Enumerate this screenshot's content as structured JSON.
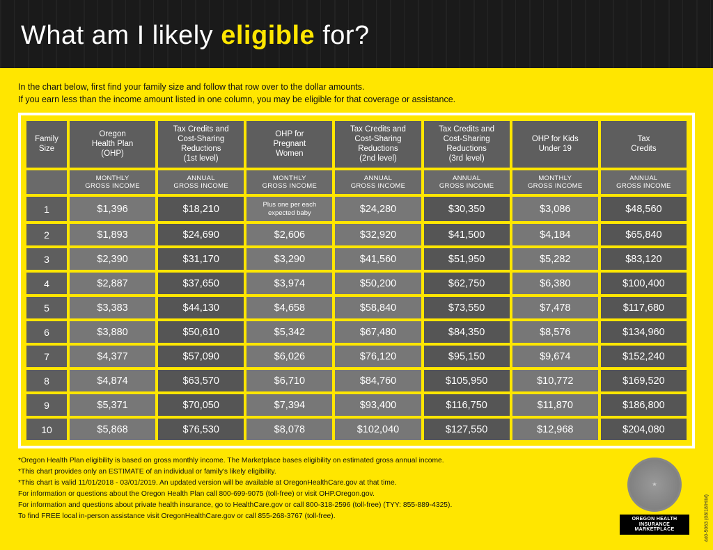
{
  "header": {
    "title_pre": "What am I likely ",
    "title_em": "eligible",
    "title_post": " for?"
  },
  "intro": {
    "line1": "In the chart below, first find your family size and follow that row over to the dollar amounts.",
    "line2": "If you earn less than the income amount listed in one column, you may be eligible for that coverage or assistance."
  },
  "table": {
    "columns": [
      {
        "label": "Family\nSize",
        "sub": ""
      },
      {
        "label": "Oregon\nHealth Plan\n(OHP)",
        "sub": "MONTHLY\nGROSS INCOME"
      },
      {
        "label": "Tax Credits and\nCost-Sharing\nReductions\n(1st level)",
        "sub": "ANNUAL\nGROSS INCOME"
      },
      {
        "label": "OHP for\nPregnant\nWomen",
        "sub": "MONTHLY\nGROSS INCOME"
      },
      {
        "label": "Tax Credits and\nCost-Sharing\nReductions\n(2nd level)",
        "sub": "ANNUAL\nGROSS INCOME"
      },
      {
        "label": "Tax Credits and\nCost-Sharing\nReductions\n(3rd level)",
        "sub": "ANNUAL\nGROSS INCOME"
      },
      {
        "label": "OHP for Kids\nUnder 19",
        "sub": "MONTHLY\nGROSS INCOME"
      },
      {
        "label": "Tax\nCredits",
        "sub": "ANNUAL\nGROSS INCOME"
      }
    ],
    "dark_cols": [
      2,
      5,
      7
    ],
    "rows": [
      [
        "1",
        "$1,396",
        "$18,210",
        "Plus one per each\nexpected baby",
        "$24,280",
        "$30,350",
        "$3,086",
        "$48,560"
      ],
      [
        "2",
        "$1,893",
        "$24,690",
        "$2,606",
        "$32,920",
        "$41,500",
        "$4,184",
        "$65,840"
      ],
      [
        "3",
        "$2,390",
        "$31,170",
        "$3,290",
        "$41,560",
        "$51,950",
        "$5,282",
        "$83,120"
      ],
      [
        "4",
        "$2,887",
        "$37,650",
        "$3,974",
        "$50,200",
        "$62,750",
        "$6,380",
        "$100,400"
      ],
      [
        "5",
        "$3,383",
        "$44,130",
        "$4,658",
        "$58,840",
        "$73,550",
        "$7,478",
        "$117,680"
      ],
      [
        "6",
        "$3,880",
        "$50,610",
        "$5,342",
        "$67,480",
        "$84,350",
        "$8,576",
        "$134,960"
      ],
      [
        "7",
        "$4,377",
        "$57,090",
        "$6,026",
        "$76,120",
        "$95,150",
        "$9,674",
        "$152,240"
      ],
      [
        "8",
        "$4,874",
        "$63,570",
        "$6,710",
        "$84,760",
        "$105,950",
        "$10,772",
        "$169,520"
      ],
      [
        "9",
        "$5,371",
        "$70,050",
        "$7,394",
        "$93,400",
        "$116,750",
        "$11,870",
        "$186,800"
      ],
      [
        "10",
        "$5,868",
        "$76,530",
        "$8,078",
        "$102,040",
        "$127,550",
        "$12,968",
        "$204,080"
      ]
    ]
  },
  "footnotes": [
    "*Oregon Health Plan eligibility is based on gross monthly income. The Marketplace bases eligibility on estimated gross annual income.",
    "*This chart provides only an ESTIMATE of an individual or family's likely eligibility.",
    "*This chart is valid 11/01/2018 - 03/01/2019. An updated version will be available at OregonHealthCare.gov at that time.",
    "For information or questions about the Oregon Health Plan call 800-699-9075 (toll-free) or visit OHP.Oregon.gov.",
    "For information and questions about private health insurance, go to HealthCare.gov or call 800-318-2596 (toll-free) (TYY: 855-889-4325).",
    "To find FREE local in-person assistance visit OregonHealthCare.gov or call 855-268-3767 (toll-free)."
  ],
  "seal": {
    "label": "OREGON HEALTH INSURANCE\nMARKETPLACE"
  },
  "sidecode": "440-5063 (08/18/HIM)",
  "colors": {
    "accent": "#ffe600",
    "header_bg": "#1a1a1a",
    "cell_bg": "#777777",
    "cell_dark": "#555555",
    "th_bg": "#5e5e5e",
    "sub_bg": "#6a6a6a"
  }
}
